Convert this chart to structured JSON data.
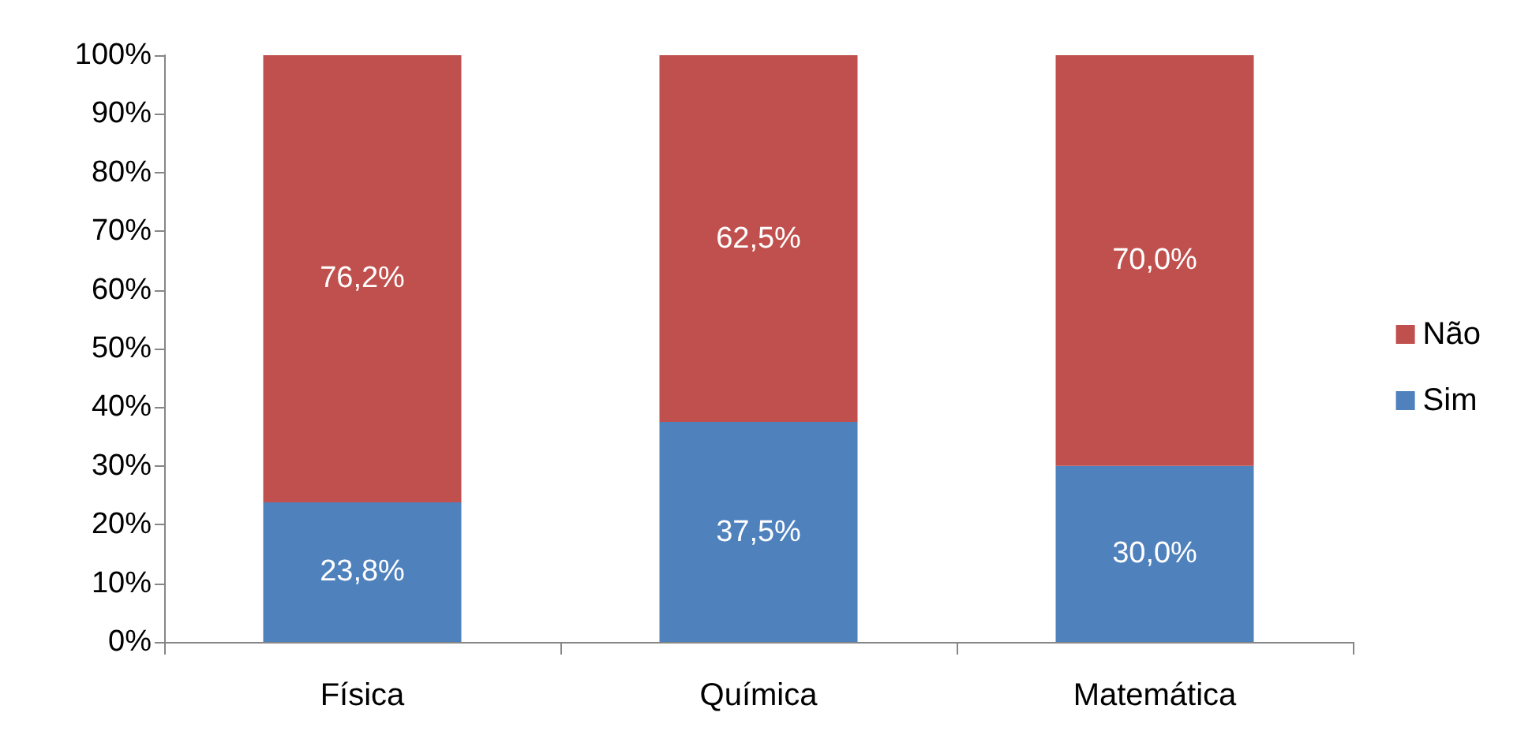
{
  "chart_data": {
    "type": "bar",
    "stacked": true,
    "categories": [
      "Física",
      "Química",
      "Matemática"
    ],
    "series": [
      {
        "name": "Sim",
        "color": "#4f81bd",
        "values": [
          23.8,
          37.5,
          30.0
        ],
        "value_labels": [
          "23,8%",
          "37,5%",
          "30,0%"
        ]
      },
      {
        "name": "Não",
        "color": "#c0504d",
        "values": [
          76.2,
          62.5,
          70.0
        ],
        "value_labels": [
          "76,2%",
          "62,5%",
          "70,0%"
        ]
      }
    ],
    "ylim": [
      0,
      100
    ],
    "yticks": [
      {
        "value": 0,
        "label": "0%"
      },
      {
        "value": 10,
        "label": "10%"
      },
      {
        "value": 20,
        "label": "20%"
      },
      {
        "value": 30,
        "label": "30%"
      },
      {
        "value": 40,
        "label": "40%"
      },
      {
        "value": 50,
        "label": "50%"
      },
      {
        "value": 60,
        "label": "60%"
      },
      {
        "value": 70,
        "label": "70%"
      },
      {
        "value": 80,
        "label": "80%"
      },
      {
        "value": 90,
        "label": "90%"
      },
      {
        "value": 100,
        "label": "100%"
      }
    ],
    "grid": false,
    "legend": "right"
  }
}
